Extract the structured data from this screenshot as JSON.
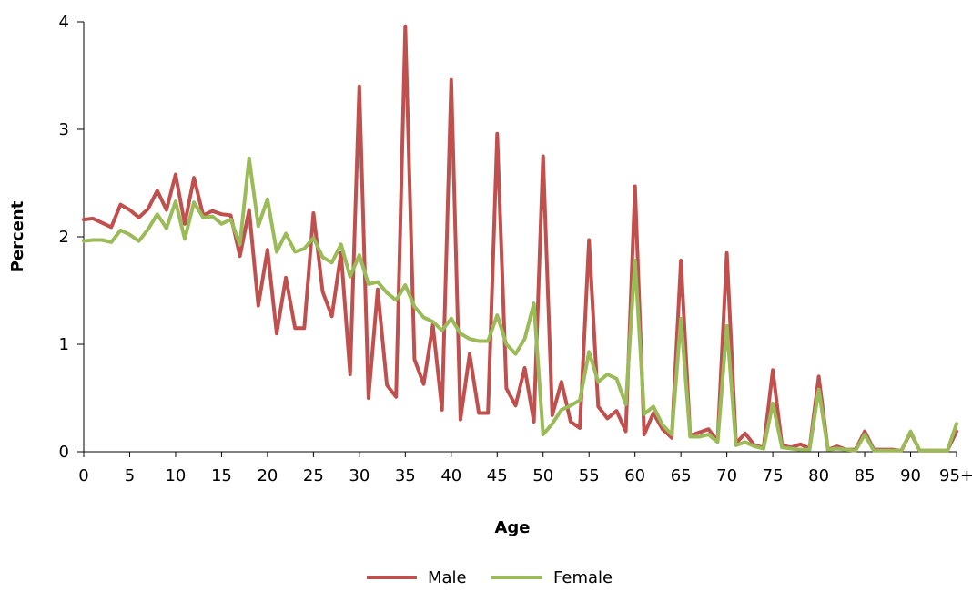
{
  "chart_data": {
    "type": "line",
    "xlabel": "Age",
    "ylabel": "Percent",
    "ylim": [
      0,
      4
    ],
    "yticks": [
      "0",
      "1",
      "2",
      "3",
      "4"
    ],
    "xtick_labels": [
      "0",
      "5",
      "10",
      "15",
      "20",
      "25",
      "30",
      "35",
      "40",
      "45",
      "50",
      "55",
      "60",
      "65",
      "70",
      "75",
      "80",
      "85",
      "90",
      "95+"
    ],
    "x": [
      0,
      1,
      2,
      3,
      4,
      5,
      6,
      7,
      8,
      9,
      10,
      11,
      12,
      13,
      14,
      15,
      16,
      17,
      18,
      19,
      20,
      21,
      22,
      23,
      24,
      25,
      26,
      27,
      28,
      29,
      30,
      31,
      32,
      33,
      34,
      35,
      36,
      37,
      38,
      39,
      40,
      41,
      42,
      43,
      44,
      45,
      46,
      47,
      48,
      49,
      50,
      51,
      52,
      53,
      54,
      55,
      56,
      57,
      58,
      59,
      60,
      61,
      62,
      63,
      64,
      65,
      66,
      67,
      68,
      69,
      70,
      71,
      72,
      73,
      74,
      75,
      76,
      77,
      78,
      79,
      80,
      81,
      82,
      83,
      84,
      85,
      86,
      87,
      88,
      89,
      90,
      91,
      92,
      93,
      94,
      95
    ],
    "legend_position": "bottom",
    "grid": false,
    "series": [
      {
        "name": "Male",
        "color": "#c0504d",
        "values": [
          2.16,
          2.17,
          2.13,
          2.09,
          2.3,
          2.25,
          2.18,
          2.26,
          2.43,
          2.25,
          2.58,
          2.12,
          2.55,
          2.2,
          2.24,
          2.21,
          2.2,
          1.82,
          2.25,
          1.36,
          1.88,
          1.1,
          1.62,
          1.15,
          1.15,
          2.22,
          1.49,
          1.26,
          1.85,
          0.72,
          3.4,
          0.5,
          1.51,
          0.62,
          0.51,
          3.96,
          0.86,
          0.63,
          1.18,
          0.39,
          3.46,
          0.3,
          0.91,
          0.36,
          0.36,
          2.96,
          0.59,
          0.43,
          0.78,
          0.28,
          2.75,
          0.34,
          0.65,
          0.28,
          0.22,
          1.97,
          0.42,
          0.31,
          0.38,
          0.19,
          2.47,
          0.16,
          0.36,
          0.21,
          0.13,
          1.78,
          0.15,
          0.18,
          0.21,
          0.1,
          1.85,
          0.08,
          0.17,
          0.06,
          0.04,
          0.76,
          0.06,
          0.04,
          0.07,
          0.03,
          0.7,
          0.02,
          0.05,
          0.02,
          0.02,
          0.19,
          0.02,
          0.02,
          0.02,
          0.01,
          0.18,
          0.01,
          0.01,
          0.01,
          0.01,
          0.19
        ]
      },
      {
        "name": "Female",
        "color": "#9bbb59",
        "values": [
          1.96,
          1.97,
          1.97,
          1.95,
          2.06,
          2.02,
          1.96,
          2.07,
          2.21,
          2.08,
          2.33,
          1.98,
          2.32,
          2.18,
          2.19,
          2.12,
          2.16,
          1.93,
          2.73,
          2.1,
          2.35,
          1.86,
          2.03,
          1.86,
          1.89,
          1.99,
          1.81,
          1.76,
          1.93,
          1.63,
          1.83,
          1.56,
          1.58,
          1.48,
          1.41,
          1.55,
          1.35,
          1.25,
          1.21,
          1.13,
          1.24,
          1.1,
          1.05,
          1.03,
          1.03,
          1.27,
          1.0,
          0.91,
          1.05,
          1.38,
          0.16,
          0.26,
          0.39,
          0.43,
          0.48,
          0.93,
          0.65,
          0.72,
          0.68,
          0.44,
          1.78,
          0.35,
          0.42,
          0.25,
          0.16,
          1.24,
          0.14,
          0.14,
          0.16,
          0.09,
          1.17,
          0.06,
          0.09,
          0.05,
          0.03,
          0.45,
          0.04,
          0.03,
          0.02,
          0.02,
          0.58,
          0.02,
          0.03,
          0.02,
          0.01,
          0.16,
          0.01,
          0.01,
          0.01,
          0.01,
          0.19,
          0.01,
          0.01,
          0.01,
          0.01,
          0.26
        ]
      }
    ]
  }
}
